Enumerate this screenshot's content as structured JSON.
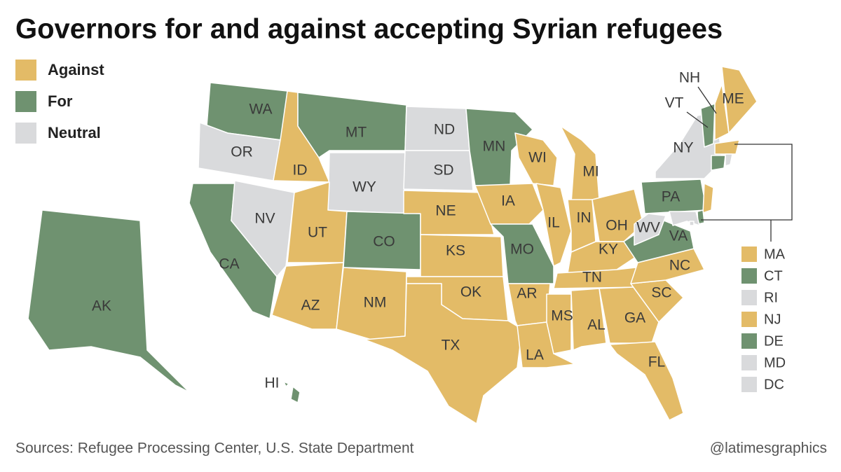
{
  "title": "Governors for and against accepting Syrian refugees",
  "legend": [
    {
      "label": "Against",
      "color": "#e3bb67"
    },
    {
      "label": "For",
      "color": "#6f9270"
    },
    {
      "label": "Neutral",
      "color": "#d9dadc"
    }
  ],
  "states": [
    {
      "label": "WA",
      "status": "For"
    },
    {
      "label": "OR",
      "status": "Neutral"
    },
    {
      "label": "CA",
      "status": "For"
    },
    {
      "label": "NV",
      "status": "Neutral"
    },
    {
      "label": "ID",
      "status": "Against"
    },
    {
      "label": "MT",
      "status": "For"
    },
    {
      "label": "WY",
      "status": "Neutral"
    },
    {
      "label": "UT",
      "status": "Against"
    },
    {
      "label": "AZ",
      "status": "Against"
    },
    {
      "label": "CO",
      "status": "For"
    },
    {
      "label": "NM",
      "status": "Against"
    },
    {
      "label": "ND",
      "status": "Neutral"
    },
    {
      "label": "SD",
      "status": "Neutral"
    },
    {
      "label": "NE",
      "status": "Against"
    },
    {
      "label": "KS",
      "status": "Against"
    },
    {
      "label": "OK",
      "status": "Against"
    },
    {
      "label": "TX",
      "status": "Against"
    },
    {
      "label": "MN",
      "status": "For"
    },
    {
      "label": "IA",
      "status": "Against"
    },
    {
      "label": "MO",
      "status": "For"
    },
    {
      "label": "AR",
      "status": "Against"
    },
    {
      "label": "LA",
      "status": "Against"
    },
    {
      "label": "WI",
      "status": "Against"
    },
    {
      "label": "IL",
      "status": "Against"
    },
    {
      "label": "MI",
      "status": "Against"
    },
    {
      "label": "IN",
      "status": "Against"
    },
    {
      "label": "OH",
      "status": "Against"
    },
    {
      "label": "KY",
      "status": "Against"
    },
    {
      "label": "TN",
      "status": "Against"
    },
    {
      "label": "MS",
      "status": "Against"
    },
    {
      "label": "AL",
      "status": "Against"
    },
    {
      "label": "GA",
      "status": "Against"
    },
    {
      "label": "FL",
      "status": "Against"
    },
    {
      "label": "SC",
      "status": "Against"
    },
    {
      "label": "NC",
      "status": "Against"
    },
    {
      "label": "VA",
      "status": "For"
    },
    {
      "label": "WV",
      "status": "Neutral"
    },
    {
      "label": "PA",
      "status": "For"
    },
    {
      "label": "NY",
      "status": "Neutral"
    },
    {
      "label": "VT",
      "status": "For"
    },
    {
      "label": "NH",
      "status": "Against"
    },
    {
      "label": "ME",
      "status": "Against"
    },
    {
      "label": "AK",
      "status": "For"
    },
    {
      "label": "HI",
      "status": "For"
    }
  ],
  "small_states": [
    {
      "label": "MA",
      "status": "Against"
    },
    {
      "label": "CT",
      "status": "For"
    },
    {
      "label": "RI",
      "status": "Neutral"
    },
    {
      "label": "NJ",
      "status": "Against"
    },
    {
      "label": "DE",
      "status": "For"
    },
    {
      "label": "MD",
      "status": "Neutral"
    },
    {
      "label": "DC",
      "status": "Neutral"
    }
  ],
  "sources": "Sources: Refugee Processing Center, U.S. State Department",
  "credit": "@latimesgraphics"
}
